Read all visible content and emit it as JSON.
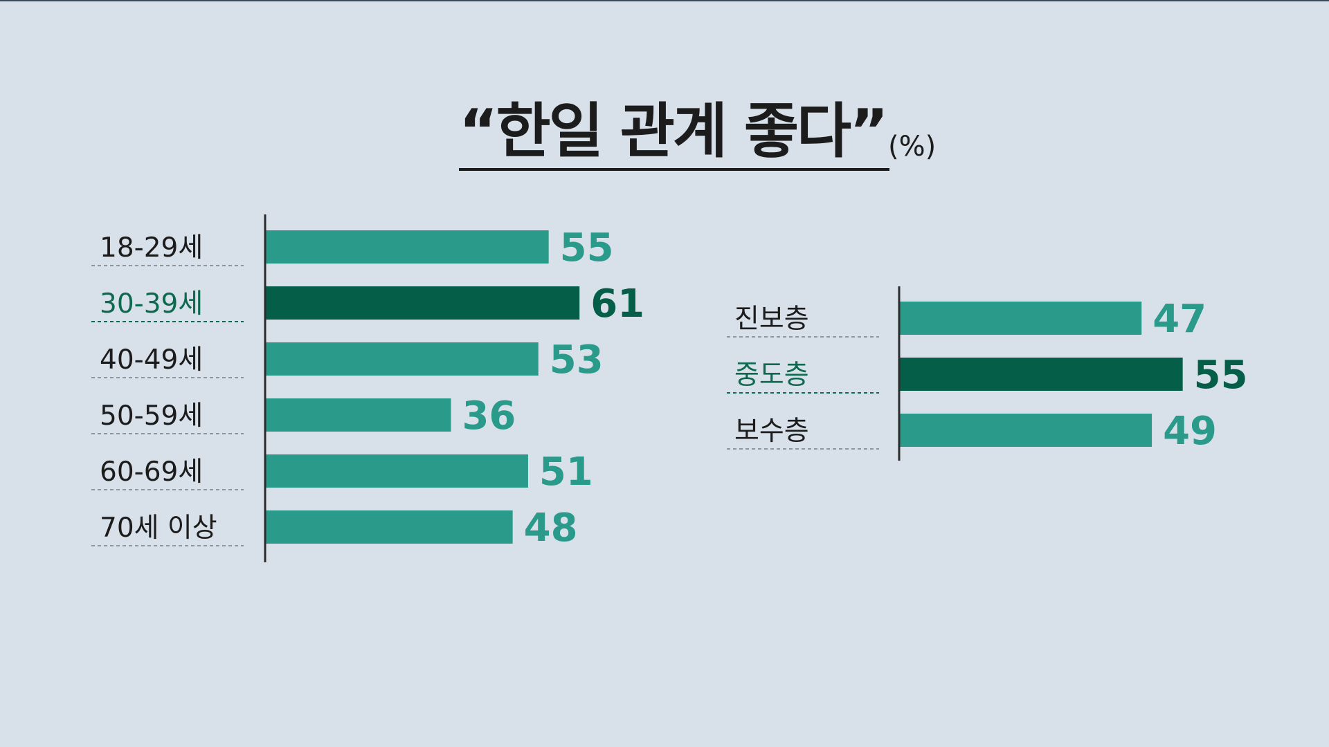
{
  "title": "“한일 관계 좋다”",
  "unit": "(%)",
  "colors": {
    "background": "#d8e0e9",
    "bar": "#2a9a8a",
    "bar_highlight": "#055e47",
    "label_text": "#1c1c1c",
    "value_text": "#2a9a8a",
    "value_highlight": "#055e47",
    "label_highlight": "#0d6a4f",
    "axis": "#2b2b2b",
    "dash": "#8a96a2"
  },
  "chart_data": [
    {
      "type": "bar",
      "orientation": "horizontal",
      "categories": [
        "18-29세",
        "30-39세",
        "40-49세",
        "50-59세",
        "60-69세",
        "70세 이상"
      ],
      "values": [
        55,
        61,
        53,
        36,
        51,
        48
      ],
      "highlight": "30-39세",
      "title": "“한일 관계 좋다”",
      "unit": "%"
    },
    {
      "type": "bar",
      "orientation": "horizontal",
      "categories": [
        "진보층",
        "중도층",
        "보수층"
      ],
      "values": [
        47,
        55,
        49
      ],
      "highlight": "중도층",
      "title": "“한일 관계 좋다”",
      "unit": "%"
    }
  ]
}
